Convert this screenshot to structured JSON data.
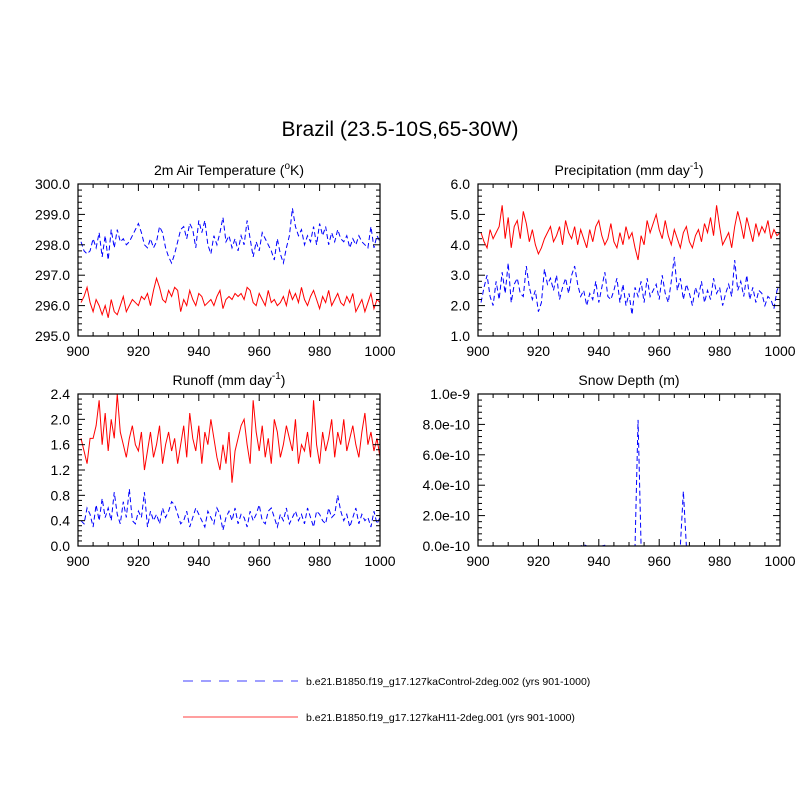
{
  "figure": {
    "title": "Brazil (23.5-10S,65-30W)"
  },
  "legend": [
    {
      "label": "b.e21.B1850.f19_g17.127kaControl-2deg.002 (yrs 901-1000)",
      "color": "#0000ff",
      "dash": "dashed"
    },
    {
      "label": "b.e21.B1850.f19_g17.127kaH11-2deg.001 (yrs 901-1000)",
      "color": "#ff0000",
      "dash": "solid"
    }
  ],
  "chart_data": [
    {
      "type": "line",
      "title_main": "2m Air Temperature (",
      "title_sup": "o",
      "title_post": "K)",
      "xlim": [
        900,
        1000
      ],
      "ylim": [
        295.0,
        300.0
      ],
      "x_ticks": [
        "900",
        "920",
        "940",
        "960",
        "980",
        "1000"
      ],
      "y_ticks": [
        "295.0",
        "296.0",
        "297.0",
        "298.0",
        "299.0",
        "300.0"
      ],
      "y_tick_values": [
        295.0,
        296.0,
        297.0,
        298.0,
        299.0,
        300.0
      ],
      "x_start": 901,
      "series": [
        {
          "color": "#0000ff",
          "dash": "dashed",
          "values": [
            298.1,
            297.8,
            297.7,
            297.8,
            298.2,
            297.9,
            298.4,
            297.6,
            298.3,
            297.5,
            298.5,
            297.9,
            298.5,
            298.1,
            298.2,
            298.0,
            298.1,
            298.3,
            298.5,
            298.7,
            298.4,
            298.0,
            297.9,
            298.2,
            297.9,
            298.1,
            298.6,
            298.4,
            297.9,
            297.6,
            297.4,
            297.7,
            298.1,
            298.5,
            298.6,
            298.2,
            298.7,
            298.5,
            297.9,
            298.8,
            298.4,
            298.8,
            298.0,
            297.7,
            298.3,
            298.0,
            298.4,
            298.9,
            298.1,
            298.3,
            297.9,
            298.2,
            297.8,
            298.3,
            298.0,
            298.8,
            298.2,
            297.6,
            298.1,
            297.8,
            298.4,
            298.2,
            298.0,
            297.8,
            297.5,
            298.2,
            297.7,
            297.4,
            297.9,
            298.3,
            299.2,
            298.6,
            298.3,
            298.5,
            298.0,
            298.3,
            298.1,
            298.6,
            298.0,
            298.7,
            298.3,
            298.6,
            298.0,
            298.4,
            298.1,
            298.5,
            298.2,
            298.1,
            298.3,
            297.9,
            298.2,
            298.0,
            298.3,
            298.1,
            298.0,
            297.9,
            298.6,
            297.9,
            298.3,
            298.1
          ]
        },
        {
          "color": "#ff0000",
          "dash": "solid",
          "values": [
            296.1,
            296.3,
            296.6,
            296.1,
            295.8,
            296.2,
            296.0,
            295.7,
            296.0,
            295.6,
            296.2,
            295.8,
            295.7,
            296.0,
            296.3,
            295.8,
            296.0,
            296.2,
            296.1,
            296.0,
            296.3,
            296.2,
            296.4,
            296.0,
            296.5,
            296.9,
            296.6,
            296.2,
            296.1,
            296.5,
            296.3,
            296.6,
            296.5,
            295.8,
            296.2,
            296.0,
            296.5,
            296.2,
            296.0,
            296.4,
            296.3,
            296.0,
            296.1,
            296.2,
            296.0,
            296.3,
            296.5,
            295.9,
            296.2,
            296.3,
            296.2,
            296.4,
            296.3,
            296.4,
            296.2,
            296.6,
            296.5,
            296.1,
            296.0,
            296.4,
            296.2,
            296.0,
            296.5,
            296.1,
            296.2,
            296.0,
            296.1,
            296.3,
            296.0,
            296.5,
            296.2,
            296.4,
            296.1,
            296.6,
            296.2,
            296.0,
            296.3,
            296.5,
            296.2,
            295.9,
            296.3,
            296.1,
            296.5,
            296.0,
            296.2,
            296.4,
            296.1,
            296.0,
            296.3,
            296.1,
            296.4,
            295.8,
            296.0,
            296.2,
            295.8,
            296.1,
            296.4,
            295.9,
            296.2,
            296.1
          ]
        }
      ]
    },
    {
      "type": "line",
      "title_main": "Precipitation (mm day",
      "title_sup": "-1",
      "title_post": ")",
      "xlim": [
        900,
        1000
      ],
      "ylim": [
        1.0,
        6.0
      ],
      "x_ticks": [
        "900",
        "920",
        "940",
        "960",
        "980",
        "1000"
      ],
      "y_ticks": [
        "1.0",
        "2.0",
        "3.0",
        "4.0",
        "5.0",
        "6.0"
      ],
      "y_tick_values": [
        1.0,
        2.0,
        3.0,
        4.0,
        5.0,
        6.0
      ],
      "x_start": 901,
      "series": [
        {
          "color": "#0000ff",
          "dash": "dashed",
          "values": [
            2.1,
            2.6,
            3.0,
            2.3,
            2.0,
            2.8,
            2.2,
            3.1,
            2.4,
            3.4,
            2.1,
            2.7,
            2.9,
            2.4,
            2.3,
            3.3,
            2.6,
            2.2,
            2.5,
            1.8,
            2.1,
            3.2,
            2.7,
            2.9,
            2.5,
            3.0,
            2.2,
            2.6,
            2.9,
            2.4,
            3.0,
            3.3,
            2.7,
            2.3,
            2.5,
            2.0,
            2.4,
            2.2,
            2.8,
            2.1,
            2.6,
            3.1,
            2.3,
            2.2,
            2.5,
            2.9,
            2.1,
            2.7,
            2.0,
            2.4,
            1.7,
            2.6,
            2.3,
            2.8,
            2.1,
            2.9,
            2.3,
            2.5,
            2.7,
            2.2,
            3.0,
            2.4,
            2.1,
            2.8,
            3.6,
            2.5,
            2.9,
            2.2,
            2.7,
            2.4,
            2.0,
            2.6,
            2.3,
            2.8,
            2.1,
            2.5,
            2.2,
            2.9,
            2.4,
            2.6,
            2.0,
            2.4,
            2.7,
            2.3,
            3.5,
            2.5,
            2.8,
            2.3,
            3.0,
            2.2,
            2.6,
            2.1,
            2.5,
            2.4,
            2.0,
            2.3,
            2.2,
            1.9,
            2.5,
            2.7
          ]
        },
        {
          "color": "#ff0000",
          "dash": "solid",
          "values": [
            4.4,
            4.1,
            3.9,
            4.5,
            4.2,
            4.4,
            4.6,
            5.3,
            4.2,
            4.9,
            3.9,
            4.6,
            4.8,
            4.2,
            5.1,
            4.7,
            4.1,
            4.5,
            4.0,
            3.7,
            3.9,
            4.2,
            4.4,
            4.6,
            4.1,
            4.3,
            4.6,
            4.0,
            4.8,
            4.4,
            4.2,
            4.6,
            4.0,
            4.5,
            4.2,
            3.9,
            4.5,
            4.1,
            4.6,
            4.8,
            4.3,
            4.0,
            4.2,
            4.7,
            4.1,
            3.9,
            4.4,
            4.0,
            4.6,
            4.2,
            4.4,
            3.9,
            3.5,
            4.3,
            4.0,
            4.8,
            4.4,
            4.7,
            5.0,
            4.5,
            4.2,
            4.8,
            4.3,
            4.0,
            4.5,
            4.2,
            3.9,
            4.4,
            4.6,
            4.1,
            3.9,
            4.3,
            4.5,
            4.1,
            4.7,
            4.4,
            4.9,
            4.3,
            5.3,
            4.6,
            4.0,
            4.2,
            4.4,
            3.9,
            4.6,
            5.1,
            4.7,
            4.2,
            4.9,
            4.5,
            4.1,
            4.7,
            4.3,
            4.6,
            4.4,
            4.8,
            4.2,
            4.5,
            4.3,
            4.4
          ]
        }
      ]
    },
    {
      "type": "line",
      "title_main": "Runoff (mm day",
      "title_sup": "-1",
      "title_post": ")",
      "xlim": [
        900,
        1000
      ],
      "ylim": [
        0.0,
        2.4
      ],
      "x_ticks": [
        "900",
        "920",
        "940",
        "960",
        "980",
        "1000"
      ],
      "y_ticks": [
        "0.0",
        "0.4",
        "0.8",
        "1.2",
        "1.6",
        "2.0",
        "2.4"
      ],
      "y_tick_values": [
        0.0,
        0.4,
        0.8,
        1.2,
        1.6,
        2.0,
        2.4
      ],
      "x_start": 901,
      "series": [
        {
          "color": "#0000ff",
          "dash": "dashed",
          "values": [
            0.4,
            0.35,
            0.6,
            0.5,
            0.3,
            0.65,
            0.4,
            0.75,
            0.45,
            0.6,
            0.4,
            0.85,
            0.5,
            0.35,
            0.7,
            0.45,
            0.9,
            0.4,
            0.35,
            0.55,
            0.45,
            0.85,
            0.3,
            0.55,
            0.4,
            0.5,
            0.35,
            0.6,
            0.45,
            0.55,
            0.7,
            0.65,
            0.5,
            0.35,
            0.4,
            0.55,
            0.3,
            0.45,
            0.6,
            0.5,
            0.4,
            0.3,
            0.55,
            0.45,
            0.35,
            0.6,
            0.5,
            0.25,
            0.45,
            0.55,
            0.4,
            0.6,
            0.35,
            0.5,
            0.45,
            0.3,
            0.55,
            0.4,
            0.5,
            0.65,
            0.4,
            0.35,
            0.55,
            0.6,
            0.45,
            0.3,
            0.5,
            0.4,
            0.6,
            0.35,
            0.45,
            0.55,
            0.4,
            0.5,
            0.35,
            0.6,
            0.45,
            0.3,
            0.55,
            0.5,
            0.4,
            0.35,
            0.6,
            0.45,
            0.5,
            0.8,
            0.55,
            0.4,
            0.5,
            0.3,
            0.45,
            0.6,
            0.35,
            0.5,
            0.4,
            0.45,
            0.3,
            0.55,
            0.35,
            0.45
          ]
        },
        {
          "color": "#ff0000",
          "dash": "solid",
          "values": [
            1.7,
            1.5,
            1.3,
            1.7,
            1.7,
            1.9,
            2.3,
            1.6,
            2.1,
            1.5,
            2.0,
            1.7,
            2.4,
            1.8,
            1.6,
            1.4,
            1.7,
            1.9,
            1.6,
            1.5,
            1.8,
            1.2,
            1.5,
            1.8,
            1.4,
            1.6,
            1.9,
            1.3,
            1.6,
            1.8,
            1.5,
            1.7,
            1.3,
            1.6,
            1.9,
            1.4,
            2.1,
            1.7,
            1.5,
            1.9,
            1.3,
            1.8,
            1.6,
            2.0,
            1.7,
            1.4,
            1.2,
            1.6,
            1.3,
            1.8,
            1.0,
            1.5,
            1.7,
            1.9,
            2.0,
            1.6,
            1.3,
            2.3,
            1.8,
            1.5,
            1.9,
            1.4,
            1.7,
            1.3,
            2.0,
            1.8,
            1.4,
            1.6,
            1.9,
            1.7,
            1.5,
            2.0,
            1.3,
            1.6,
            1.5,
            1.8,
            1.4,
            2.3,
            1.6,
            1.3,
            1.8,
            1.5,
            1.7,
            2.0,
            1.4,
            1.8,
            1.6,
            2.0,
            1.5,
            1.7,
            1.9,
            1.6,
            1.4,
            1.8,
            2.1,
            1.6,
            1.8,
            1.5,
            1.7,
            1.4
          ]
        }
      ]
    },
    {
      "type": "line",
      "title_main": "Snow Depth (m)",
      "title_sup": "",
      "title_post": "",
      "xlim": [
        900,
        1000
      ],
      "ylim": [
        0,
        1e-09
      ],
      "x_ticks": [
        "900",
        "920",
        "940",
        "960",
        "980",
        "1000"
      ],
      "y_ticks": [
        "0.0e-10",
        "2.0e-10",
        "4.0e-10",
        "6.0e-10",
        "8.0e-10",
        "1.0e-9"
      ],
      "y_tick_values": [
        0,
        2e-10,
        4e-10,
        6e-10,
        8e-10,
        1e-09
      ],
      "x_start": 901,
      "series": [
        {
          "color": "#0000ff",
          "dash": "dashed",
          "values": [
            0,
            0,
            0,
            0,
            0,
            0,
            0,
            0,
            0,
            0,
            0,
            0,
            0,
            0,
            0,
            0,
            0,
            0,
            0,
            0,
            0,
            0,
            0,
            0,
            0,
            0,
            0,
            0,
            0,
            0,
            0,
            0,
            0,
            0,
            1e-11,
            0,
            0,
            0,
            0,
            0,
            0,
            5e-12,
            0,
            0,
            0,
            0,
            0,
            0,
            0,
            0,
            0,
            0,
            8.3e-10,
            0,
            0,
            0,
            0,
            0,
            0,
            0,
            0,
            0,
            0,
            0,
            0,
            0,
            0,
            3.6e-10,
            0,
            0,
            0,
            0,
            0,
            0,
            0,
            0,
            0,
            0,
            0,
            0,
            0,
            0,
            0,
            0,
            0,
            0,
            0,
            0,
            0,
            0,
            0,
            0,
            0,
            0,
            0,
            0,
            0,
            0,
            0,
            0
          ]
        },
        {
          "color": "#ff0000",
          "dash": "solid",
          "values": [
            0,
            0,
            0,
            0,
            0,
            0,
            0,
            0,
            0,
            0,
            0,
            0,
            0,
            0,
            0,
            0,
            0,
            0,
            0,
            0,
            0,
            0,
            0,
            0,
            0,
            0,
            0,
            0,
            0,
            0,
            0,
            0,
            0,
            0,
            0,
            0,
            0,
            0,
            0,
            0,
            0,
            0,
            0,
            0,
            0,
            0,
            0,
            0,
            0,
            0,
            0,
            0,
            0,
            0,
            0,
            0,
            0,
            0,
            0,
            0,
            0,
            0,
            0,
            0,
            0,
            0,
            0,
            0,
            0,
            0,
            0,
            0,
            0,
            0,
            0,
            0,
            0,
            0,
            0,
            0,
            0,
            0,
            0,
            0,
            0,
            0,
            0,
            0,
            0,
            0,
            0,
            0,
            0,
            0,
            0,
            0,
            0,
            0,
            0,
            0
          ]
        }
      ]
    }
  ]
}
